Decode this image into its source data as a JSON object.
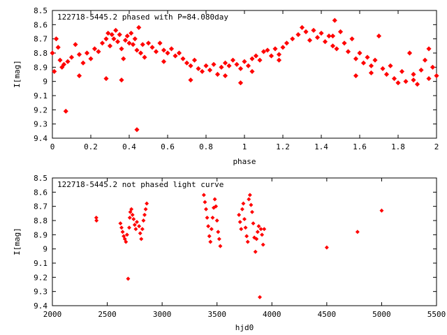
{
  "chart_data": [
    {
      "type": "scatter",
      "title": "122718-5445.2 phased with P=84.080day",
      "xlabel": "phase",
      "ylabel": "I[mag]",
      "xlim": [
        0,
        2
      ],
      "ylim": [
        9.4,
        8.5
      ],
      "y_inverted": true,
      "x_ticks": [
        "0",
        "0.2",
        "0.4",
        "0.6",
        "0.8",
        "1",
        "1.2",
        "1.4",
        "1.6",
        "1.8",
        "2"
      ],
      "y_ticks": [
        "8.5",
        "8.6",
        "8.7",
        "8.8",
        "8.9",
        "9",
        "9.1",
        "9.2",
        "9.3",
        "9.4"
      ],
      "grid": false,
      "marker_color": "#ff0000",
      "points": [
        [
          0.0,
          8.8
        ],
        [
          0.01,
          8.93
        ],
        [
          0.02,
          8.7
        ],
        [
          0.03,
          8.76
        ],
        [
          0.04,
          8.85
        ],
        [
          0.05,
          8.9
        ],
        [
          0.06,
          8.88
        ],
        [
          0.07,
          9.21
        ],
        [
          0.08,
          8.86
        ],
        [
          0.1,
          8.83
        ],
        [
          0.12,
          8.74
        ],
        [
          0.14,
          8.81
        ],
        [
          0.16,
          8.87
        ],
        [
          0.18,
          8.8
        ],
        [
          0.2,
          8.84
        ],
        [
          0.22,
          8.77
        ],
        [
          0.24,
          8.79
        ],
        [
          0.26,
          8.73
        ],
        [
          0.28,
          8.7
        ],
        [
          0.29,
          8.66
        ],
        [
          0.3,
          8.75
        ],
        [
          0.31,
          8.67
        ],
        [
          0.32,
          8.7
        ],
        [
          0.33,
          8.64
        ],
        [
          0.34,
          8.72
        ],
        [
          0.35,
          8.67
        ],
        [
          0.36,
          8.77
        ],
        [
          0.37,
          8.84
        ],
        [
          0.38,
          8.71
        ],
        [
          0.39,
          8.68
        ],
        [
          0.4,
          8.73
        ],
        [
          0.41,
          8.66
        ],
        [
          0.42,
          8.74
        ],
        [
          0.43,
          8.7
        ],
        [
          0.44,
          8.78
        ],
        [
          0.45,
          8.62
        ],
        [
          0.46,
          8.8
        ],
        [
          0.47,
          8.74
        ],
        [
          0.48,
          8.83
        ],
        [
          0.5,
          8.73
        ],
        [
          0.52,
          8.76
        ],
        [
          0.54,
          8.79
        ],
        [
          0.56,
          8.73
        ],
        [
          0.58,
          8.78
        ],
        [
          0.6,
          8.8
        ],
        [
          0.62,
          8.77
        ],
        [
          0.64,
          8.82
        ],
        [
          0.66,
          8.8
        ],
        [
          0.68,
          8.84
        ],
        [
          0.7,
          8.87
        ],
        [
          0.72,
          8.89
        ],
        [
          0.74,
          8.85
        ],
        [
          0.76,
          8.91
        ],
        [
          0.78,
          8.93
        ],
        [
          0.8,
          8.89
        ],
        [
          0.82,
          8.92
        ],
        [
          0.84,
          8.88
        ],
        [
          0.86,
          8.95
        ],
        [
          0.88,
          8.9
        ],
        [
          0.9,
          8.87
        ],
        [
          0.92,
          8.89
        ],
        [
          0.94,
          8.85
        ],
        [
          0.96,
          8.88
        ],
        [
          0.98,
          8.91
        ],
        [
          1.0,
          8.86
        ],
        [
          1.02,
          8.89
        ],
        [
          1.04,
          8.84
        ],
        [
          1.06,
          8.82
        ],
        [
          1.08,
          8.85
        ],
        [
          1.1,
          8.79
        ],
        [
          1.12,
          8.78
        ],
        [
          1.14,
          8.82
        ],
        [
          1.16,
          8.77
        ],
        [
          1.18,
          8.81
        ],
        [
          1.2,
          8.76
        ],
        [
          1.22,
          8.73
        ],
        [
          1.25,
          8.7
        ],
        [
          1.28,
          8.67
        ],
        [
          1.3,
          8.62
        ],
        [
          1.32,
          8.65
        ],
        [
          1.34,
          8.71
        ],
        [
          1.36,
          8.64
        ],
        [
          1.38,
          8.69
        ],
        [
          1.4,
          8.66
        ],
        [
          1.42,
          8.72
        ],
        [
          1.44,
          8.68
        ],
        [
          1.46,
          8.75
        ],
        [
          1.47,
          8.57
        ],
        [
          1.48,
          8.77
        ],
        [
          1.5,
          8.65
        ],
        [
          1.52,
          8.73
        ],
        [
          1.54,
          8.79
        ],
        [
          1.56,
          8.7
        ],
        [
          1.58,
          8.84
        ],
        [
          1.6,
          8.8
        ],
        [
          1.62,
          8.87
        ],
        [
          1.64,
          8.83
        ],
        [
          1.66,
          8.89
        ],
        [
          1.68,
          8.85
        ],
        [
          1.7,
          8.68
        ],
        [
          1.72,
          8.91
        ],
        [
          1.74,
          8.95
        ],
        [
          1.76,
          8.89
        ],
        [
          1.78,
          8.98
        ],
        [
          1.8,
          9.01
        ],
        [
          1.82,
          8.93
        ],
        [
          1.84,
          9.0
        ],
        [
          1.86,
          8.8
        ],
        [
          1.88,
          8.95
        ],
        [
          1.9,
          9.02
        ],
        [
          1.92,
          8.92
        ],
        [
          1.94,
          8.85
        ],
        [
          1.96,
          8.98
        ],
        [
          1.98,
          8.9
        ],
        [
          2.0,
          8.96
        ],
        [
          0.14,
          8.96
        ],
        [
          0.28,
          8.98
        ],
        [
          0.44,
          9.34
        ],
        [
          0.58,
          8.86
        ],
        [
          0.72,
          8.99
        ],
        [
          0.9,
          8.96
        ],
        [
          1.04,
          8.93
        ],
        [
          1.18,
          8.85
        ],
        [
          1.46,
          8.68
        ],
        [
          1.66,
          8.94
        ],
        [
          1.88,
          8.99
        ],
        [
          0.36,
          8.99
        ],
        [
          0.98,
          9.01
        ],
        [
          1.58,
          8.96
        ],
        [
          1.96,
          8.77
        ]
      ]
    },
    {
      "type": "scatter",
      "title": "122718-5445.2 not phased light curve",
      "xlabel": "hjd0",
      "ylabel": "I[mag]",
      "xlim": [
        2000,
        5500
      ],
      "ylim": [
        9.4,
        8.5
      ],
      "y_inverted": true,
      "x_ticks": [
        "2000",
        "2500",
        "3000",
        "3500",
        "4000",
        "4500",
        "5000",
        "5500"
      ],
      "y_ticks": [
        "8.5",
        "8.6",
        "8.7",
        "8.8",
        "8.9",
        "9",
        "9.1",
        "9.2",
        "9.3",
        "9.4"
      ],
      "grid": false,
      "marker_color": "#ff0000",
      "points": [
        [
          2400,
          8.78
        ],
        [
          2402,
          8.8
        ],
        [
          2620,
          8.82
        ],
        [
          2630,
          8.85
        ],
        [
          2640,
          8.88
        ],
        [
          2650,
          8.91
        ],
        [
          2660,
          8.93
        ],
        [
          2670,
          8.95
        ],
        [
          2680,
          8.9
        ],
        [
          2690,
          9.21
        ],
        [
          2700,
          8.85
        ],
        [
          2705,
          8.78
        ],
        [
          2710,
          8.74
        ],
        [
          2720,
          8.72
        ],
        [
          2730,
          8.76
        ],
        [
          2740,
          8.79
        ],
        [
          2750,
          8.83
        ],
        [
          2760,
          8.86
        ],
        [
          2770,
          8.81
        ],
        [
          2790,
          8.84
        ],
        [
          2800,
          8.89
        ],
        [
          2810,
          8.93
        ],
        [
          2820,
          8.86
        ],
        [
          2830,
          8.8
        ],
        [
          2840,
          8.76
        ],
        [
          2850,
          8.72
        ],
        [
          2860,
          8.68
        ],
        [
          3380,
          8.62
        ],
        [
          3390,
          8.67
        ],
        [
          3400,
          8.72
        ],
        [
          3410,
          8.78
        ],
        [
          3420,
          8.84
        ],
        [
          3430,
          8.91
        ],
        [
          3440,
          8.95
        ],
        [
          3450,
          8.86
        ],
        [
          3460,
          8.78
        ],
        [
          3470,
          8.71
        ],
        [
          3480,
          8.65
        ],
        [
          3490,
          8.7
        ],
        [
          3500,
          8.8
        ],
        [
          3510,
          8.88
        ],
        [
          3520,
          8.93
        ],
        [
          3530,
          8.98
        ],
        [
          3700,
          8.76
        ],
        [
          3710,
          8.81
        ],
        [
          3720,
          8.86
        ],
        [
          3730,
          8.72
        ],
        [
          3740,
          8.68
        ],
        [
          3750,
          8.79
        ],
        [
          3760,
          8.85
        ],
        [
          3770,
          8.91
        ],
        [
          3780,
          8.95
        ],
        [
          3790,
          8.65
        ],
        [
          3800,
          8.62
        ],
        [
          3810,
          8.69
        ],
        [
          3820,
          8.74
        ],
        [
          3830,
          8.82
        ],
        [
          3840,
          8.92
        ],
        [
          3850,
          9.02
        ],
        [
          3860,
          8.93
        ],
        [
          3870,
          8.88
        ],
        [
          3880,
          8.84
        ],
        [
          3890,
          9.34
        ],
        [
          3900,
          8.86
        ],
        [
          3910,
          8.9
        ],
        [
          3920,
          8.97
        ],
        [
          3930,
          8.86
        ],
        [
          4500,
          8.99
        ],
        [
          4780,
          8.88
        ],
        [
          5000,
          8.73
        ]
      ]
    }
  ]
}
